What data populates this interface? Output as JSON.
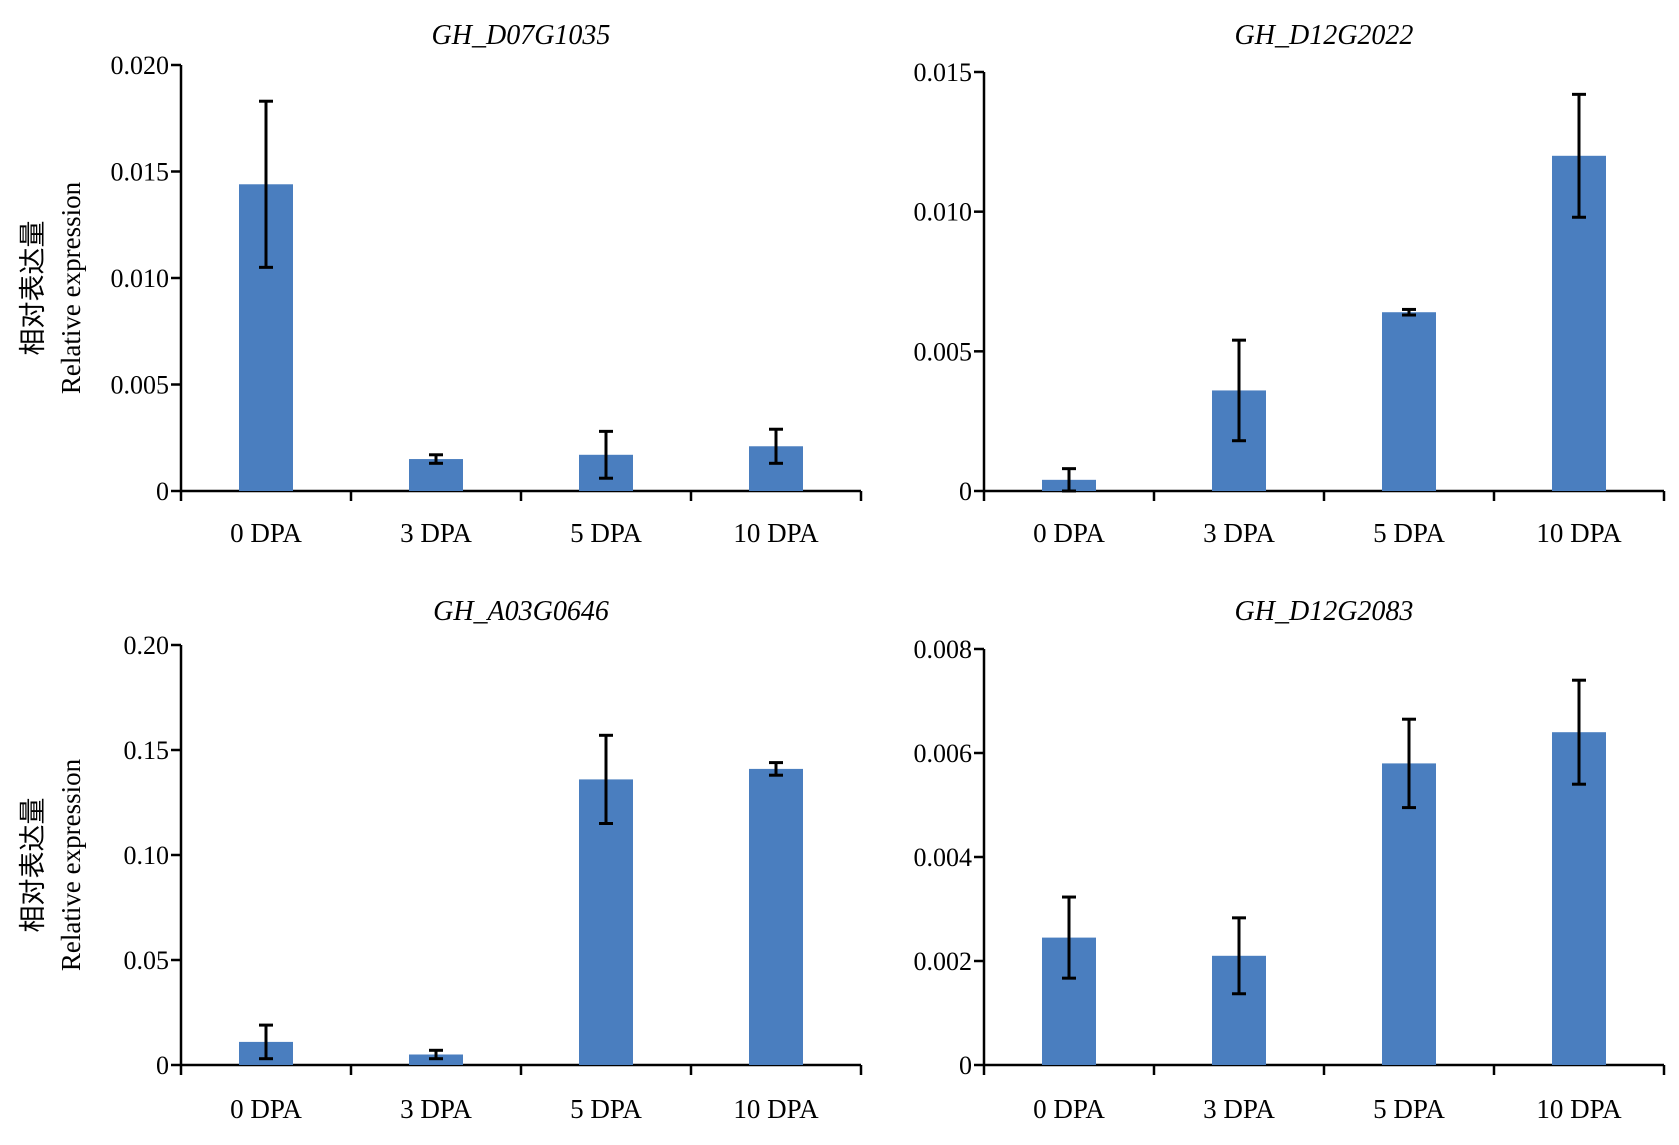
{
  "colors": {
    "bar": "#4a7ebf",
    "axis": "#000000"
  },
  "chart_data": [
    {
      "type": "bar",
      "title": "GH_D07G1035",
      "ylabel_cn": "相对表达量",
      "ylabel_en": "Relative expression",
      "categories": [
        "0 DPA",
        "3 DPA",
        "5 DPA",
        "10 DPA"
      ],
      "values": [
        0.0144,
        0.0015,
        0.0017,
        0.0021
      ],
      "errors": [
        0.0039,
        0.0002,
        0.0011,
        0.0008
      ],
      "ylim": [
        0,
        0.02
      ],
      "yticks": [
        "0",
        "0.005",
        "0.010",
        "0.015",
        "0.020"
      ],
      "ytick_values": [
        0,
        0.005,
        0.01,
        0.015,
        0.02
      ],
      "grid": false
    },
    {
      "type": "bar",
      "title": "GH_D12G2022",
      "ylabel_cn": "",
      "ylabel_en": "",
      "categories": [
        "0 DPA",
        "3 DPA",
        "5 DPA",
        "10 DPA"
      ],
      "values": [
        0.0004,
        0.0036,
        0.0064,
        0.012
      ],
      "errors": [
        0.0004,
        0.0018,
        0.0001,
        0.0022
      ],
      "ylim": [
        0,
        0.015
      ],
      "yticks": [
        "0",
        "0.005",
        "0.010",
        "0.015"
      ],
      "ytick_values": [
        0,
        0.005,
        0.01,
        0.015
      ],
      "grid": false
    },
    {
      "type": "bar",
      "title": "GH_A03G0646",
      "ylabel_cn": "相对表达量",
      "ylabel_en": "Relative expression",
      "categories": [
        "0 DPA",
        "3 DPA",
        "5 DPA",
        "10 DPA"
      ],
      "values": [
        0.011,
        0.005,
        0.136,
        0.141
      ],
      "errors": [
        0.008,
        0.002,
        0.021,
        0.003
      ],
      "ylim": [
        0,
        0.2
      ],
      "yticks": [
        "0",
        "0.05",
        "0.10",
        "0.15",
        "0.20"
      ],
      "ytick_values": [
        0,
        0.05,
        0.1,
        0.15,
        0.2
      ],
      "grid": false
    },
    {
      "type": "bar",
      "title": "GH_D12G2083",
      "ylabel_cn": "",
      "ylabel_en": "",
      "categories": [
        "0 DPA",
        "3 DPA",
        "5 DPA",
        "10 DPA"
      ],
      "values": [
        0.00245,
        0.0021,
        0.0058,
        0.0064
      ],
      "errors": [
        0.00078,
        0.00073,
        0.00085,
        0.001
      ],
      "ylim": [
        0,
        0.008
      ],
      "yticks": [
        "0",
        "0.002",
        "0.004",
        "0.006",
        "0.008"
      ],
      "ytick_values": [
        0,
        0.002,
        0.004,
        0.006,
        0.008
      ],
      "grid": false
    }
  ]
}
